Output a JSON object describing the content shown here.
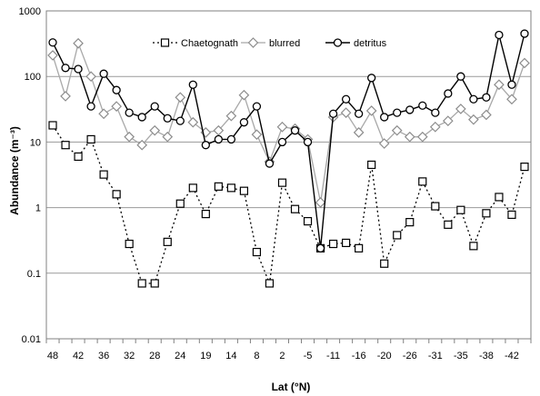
{
  "chart_data": {
    "type": "line",
    "title": "",
    "xlabel": "Lat (°N)",
    "ylabel": "Abundance (m⁻³)",
    "yscale": "log",
    "ylim": [
      0.01,
      1000
    ],
    "yticks": [
      "0.01",
      "0.1",
      "1",
      "10",
      "100",
      "1000"
    ],
    "grid": "horizontal",
    "legend_position": "top",
    "x_tick_labels": [
      "48",
      "42",
      "36",
      "32",
      "28",
      "24",
      "19",
      "14",
      "8",
      "2",
      "-5",
      "-11",
      "-16",
      "-20",
      "-26",
      "-31",
      "-35",
      "-38",
      "-42"
    ],
    "series": [
      {
        "name": "Chaetognath",
        "marker": "square",
        "line": "dotted",
        "values": [
          18,
          9,
          6,
          11,
          3.2,
          1.6,
          0.28,
          0.07,
          0.07,
          0.3,
          1.15,
          2.0,
          0.8,
          2.1,
          2.0,
          1.8,
          0.21,
          0.07,
          2.4,
          0.95,
          0.62,
          0.24,
          0.28,
          0.29,
          0.24,
          4.5,
          0.14,
          0.38,
          0.6,
          2.5,
          1.05,
          0.55,
          0.92,
          0.26,
          0.82,
          1.45,
          0.78,
          4.2
        ]
      },
      {
        "name": "blurred",
        "marker": "diamond",
        "line": "solid-gray",
        "values": [
          210,
          50,
          320,
          100,
          27,
          35,
          12,
          9,
          15,
          12,
          48,
          20,
          14,
          15,
          25,
          52,
          13,
          5,
          17,
          16,
          11,
          1.2,
          24,
          28,
          14,
          30,
          9.5,
          15,
          12,
          12,
          17,
          21,
          32,
          22,
          26,
          75,
          45,
          160
        ]
      },
      {
        "name": "detritus",
        "marker": "circle",
        "line": "solid",
        "values": [
          330,
          135,
          130,
          35,
          110,
          62,
          28,
          24,
          35,
          23,
          21,
          75,
          9,
          11,
          11,
          20,
          35,
          4.7,
          10,
          15,
          10,
          0.24,
          27,
          45,
          27,
          95,
          24,
          28,
          31,
          36,
          28,
          55,
          100,
          45,
          48,
          430,
          75,
          450
        ]
      }
    ]
  }
}
